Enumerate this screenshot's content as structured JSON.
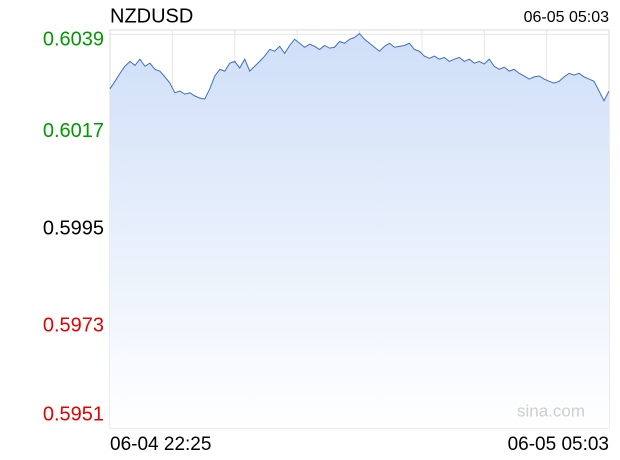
{
  "chart_data": {
    "type": "area",
    "title": "NZDUSD",
    "datetime": "06-05 05:03",
    "x_labels": [
      "06-04 22:25",
      "06-05 05:03"
    ],
    "values": [
      0.60267,
      0.60284,
      0.60302,
      0.60318,
      0.60329,
      0.6032,
      0.60334,
      0.60318,
      0.60325,
      0.60311,
      0.60307,
      0.60294,
      0.6028,
      0.60258,
      0.60262,
      0.60255,
      0.60258,
      0.60251,
      0.60246,
      0.60244,
      0.60267,
      0.60296,
      0.60311,
      0.60307,
      0.60325,
      0.60329,
      0.60314,
      0.60334,
      0.60307,
      0.60318,
      0.60329,
      0.60341,
      0.60356,
      0.60352,
      0.60363,
      0.60347,
      0.60365,
      0.60379,
      0.6037,
      0.60361,
      0.60368,
      0.60363,
      0.60356,
      0.60365,
      0.60359,
      0.60361,
      0.60374,
      0.6037,
      0.60379,
      0.60383,
      0.60392,
      0.60379,
      0.6037,
      0.60361,
      0.60352,
      0.60363,
      0.6037,
      0.60361,
      0.60363,
      0.60365,
      0.6037,
      0.60356,
      0.60352,
      0.60341,
      0.60336,
      0.60341,
      0.60334,
      0.60338,
      0.60329,
      0.60334,
      0.60338,
      0.60329,
      0.60334,
      0.60325,
      0.60329,
      0.60323,
      0.60334,
      0.60318,
      0.60311,
      0.60316,
      0.60307,
      0.60311,
      0.60302,
      0.60296,
      0.60289,
      0.60294,
      0.60296,
      0.60289,
      0.60284,
      0.6028,
      0.60284,
      0.60294,
      0.60302,
      0.60298,
      0.60302,
      0.60294,
      0.60289,
      0.60284,
      0.60262,
      0.6024,
      0.60262
    ],
    "color": "#3f6fbf",
    "ylim": [
      0.595,
      0.604
    ],
    "yticks": [
      0.5951,
      0.5973,
      0.5995,
      0.6017,
      0.6039
    ],
    "reference": 0.5995,
    "up_color": "#009900",
    "down_color": "#e60000",
    "grid": true,
    "watermark": "sina.com"
  }
}
